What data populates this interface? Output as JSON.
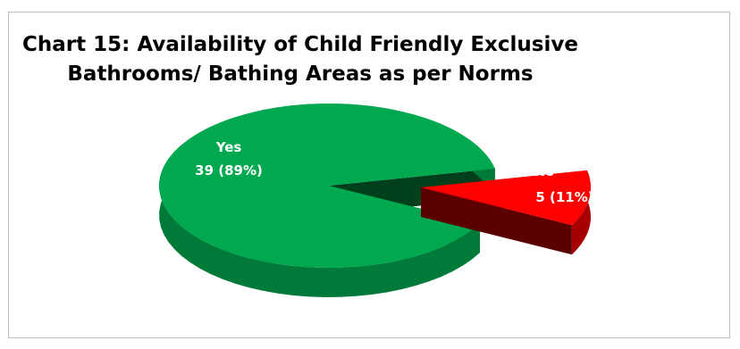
{
  "chart_data": {
    "type": "pie",
    "title_lines": [
      "Chart 15: Availability of Child Friendly Exclusive",
      "Bathrooms/ Bathing Areas as per Norms"
    ],
    "categories": [
      "Yes",
      "No"
    ],
    "values": [
      39,
      5
    ],
    "percentages": [
      "89%",
      "11%"
    ],
    "data_labels": [
      {
        "name": "Yes",
        "value_text": "39 (89%)"
      },
      {
        "name": "No",
        "value_text": "5 (11%)"
      }
    ],
    "style": "3d-exploded",
    "legend": "none",
    "colors": {
      "Yes": {
        "top": "#00a850",
        "side": "#007a38",
        "edge": "#003f1c"
      },
      "No": {
        "top": "#ff0000",
        "side": "#a80000",
        "edge": "#5a0000"
      }
    }
  }
}
